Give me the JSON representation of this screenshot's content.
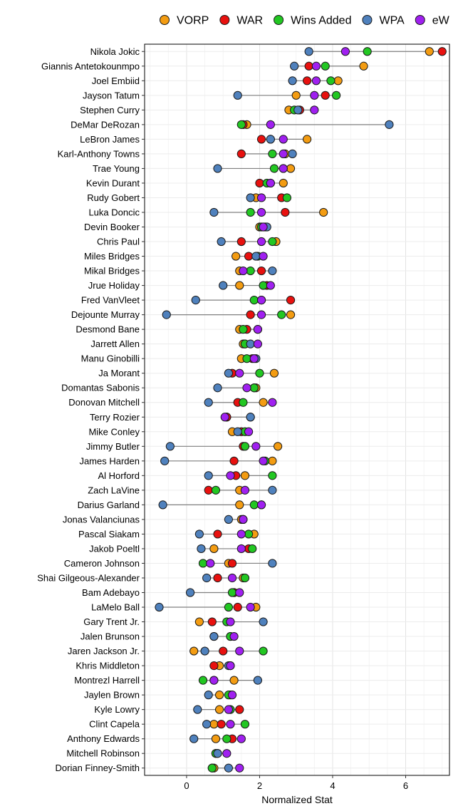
{
  "chart_data": {
    "type": "scatter",
    "xlabel": "Normalized Stat",
    "ylabel": "",
    "xlim": [
      -1.15,
      7.2
    ],
    "xticks": [
      0,
      2,
      4,
      6
    ],
    "grid": true,
    "legend_position": "top",
    "colors": {
      "VORP": "#F39C12",
      "WAR": "#E8110F",
      "Wins Added": "#22C722",
      "WPA": "#4F81BD",
      "eW": "#A020F0"
    },
    "series_order": [
      "VORP",
      "WAR",
      "Wins Added",
      "WPA",
      "eW"
    ],
    "players": [
      {
        "name": "Nikola Jokic",
        "VORP": 6.65,
        "WAR": 7.0,
        "Wins Added": 4.95,
        "WPA": 3.35,
        "eW": 4.35
      },
      {
        "name": "Giannis Antetokounmpo",
        "VORP": 4.85,
        "WAR": 3.35,
        "Wins Added": 3.8,
        "WPA": 2.95,
        "eW": 3.55
      },
      {
        "name": "Joel Embiid",
        "VORP": 4.15,
        "WAR": 3.3,
        "Wins Added": 3.95,
        "WPA": 2.9,
        "eW": 3.55
      },
      {
        "name": "Jayson Tatum",
        "VORP": 3.0,
        "WAR": 3.8,
        "Wins Added": 4.1,
        "WPA": 1.4,
        "eW": 3.5
      },
      {
        "name": "Stephen Curry",
        "VORP": 2.8,
        "WAR": 3.1,
        "Wins Added": 2.95,
        "WPA": 3.05,
        "eW": 3.5
      },
      {
        "name": "DeMar DeRozan",
        "VORP": 1.65,
        "WAR": 1.55,
        "Wins Added": 1.5,
        "WPA": 5.55,
        "eW": 2.3
      },
      {
        "name": "LeBron James",
        "VORP": 3.3,
        "WAR": 2.05,
        "Wins Added": 2.3,
        "WPA": 2.3,
        "eW": 2.65
      },
      {
        "name": "Karl-Anthony Towns",
        "VORP": 2.7,
        "WAR": 1.5,
        "Wins Added": 2.35,
        "WPA": 2.9,
        "eW": 2.65
      },
      {
        "name": "Trae Young",
        "VORP": 2.85,
        "WAR": 2.65,
        "Wins Added": 2.4,
        "WPA": 0.85,
        "eW": 2.65
      },
      {
        "name": "Kevin Durant",
        "VORP": 2.65,
        "WAR": 2.0,
        "Wins Added": 2.2,
        "WPA": 2.3,
        "eW": 2.3
      },
      {
        "name": "Rudy Gobert",
        "VORP": 1.9,
        "WAR": 2.6,
        "Wins Added": 2.75,
        "WPA": 1.75,
        "eW": 2.05
      },
      {
        "name": "Luka Doncic",
        "VORP": 3.75,
        "WAR": 2.7,
        "Wins Added": 1.75,
        "WPA": 0.75,
        "eW": 2.05
      },
      {
        "name": "Devin Booker",
        "VORP": 2.0,
        "WAR": 2.15,
        "Wins Added": 2.05,
        "WPA": 2.2,
        "eW": 2.1
      },
      {
        "name": "Chris Paul",
        "VORP": 2.45,
        "WAR": 1.5,
        "Wins Added": 2.35,
        "WPA": 0.95,
        "eW": 2.05
      },
      {
        "name": "Miles Bridges",
        "VORP": 1.35,
        "WAR": 1.7,
        "Wins Added": 1.95,
        "WPA": 1.9,
        "eW": 2.1
      },
      {
        "name": "Mikal Bridges",
        "VORP": 1.45,
        "WAR": 2.05,
        "Wins Added": 1.75,
        "WPA": 2.35,
        "eW": 1.55
      },
      {
        "name": "Jrue Holiday",
        "VORP": 1.45,
        "WAR": 2.2,
        "Wins Added": 2.1,
        "WPA": 1.0,
        "eW": 2.3
      },
      {
        "name": "Fred VanVleet",
        "VORP": 2.05,
        "WAR": 2.85,
        "Wins Added": 1.85,
        "WPA": 0.25,
        "eW": 2.05
      },
      {
        "name": "Dejounte Murray",
        "VORP": 2.85,
        "WAR": 1.75,
        "Wins Added": 2.6,
        "WPA": -0.55,
        "eW": 2.05
      },
      {
        "name": "Desmond Bane",
        "VORP": 1.45,
        "WAR": 1.65,
        "Wins Added": 1.55,
        "WPA": 1.95,
        "eW": 1.95
      },
      {
        "name": "Jarrett Allen",
        "VORP": 1.55,
        "WAR": 1.6,
        "Wins Added": 1.6,
        "WPA": 1.75,
        "eW": 1.95
      },
      {
        "name": "Manu Ginobilli",
        "VORP": 1.5,
        "WAR": 1.8,
        "Wins Added": 1.65,
        "WPA": 1.9,
        "eW": 1.85
      },
      {
        "name": "Ja Morant",
        "VORP": 2.4,
        "WAR": 1.25,
        "Wins Added": 2.0,
        "WPA": 1.15,
        "eW": 1.45
      },
      {
        "name": "Domantas Sabonis",
        "VORP": 1.9,
        "WAR": 1.85,
        "Wins Added": 1.85,
        "WPA": 0.85,
        "eW": 1.65
      },
      {
        "name": "Donovan Mitchell",
        "VORP": 2.1,
        "WAR": 1.4,
        "Wins Added": 1.55,
        "WPA": 0.6,
        "eW": 2.35
      },
      {
        "name": "Terry Rozier",
        "VORP": 1.1,
        "WAR": 1.1,
        "Wins Added": 1.75,
        "WPA": 1.75,
        "eW": 1.05
      },
      {
        "name": "Mike Conley",
        "VORP": 1.25,
        "WAR": 1.5,
        "Wins Added": 1.6,
        "WPA": 1.4,
        "eW": 1.7
      },
      {
        "name": "Jimmy Butler",
        "VORP": 2.5,
        "WAR": 1.55,
        "Wins Added": 1.6,
        "WPA": -0.45,
        "eW": 1.9
      },
      {
        "name": "James Harden",
        "VORP": 2.35,
        "WAR": 1.3,
        "Wins Added": 2.15,
        "WPA": -0.6,
        "eW": 2.1
      },
      {
        "name": "Al Horford",
        "VORP": 1.6,
        "WAR": 1.35,
        "Wins Added": 2.35,
        "WPA": 0.6,
        "eW": 1.2
      },
      {
        "name": "Zach LaVine",
        "VORP": 1.45,
        "WAR": 0.6,
        "Wins Added": 0.8,
        "WPA": 2.35,
        "eW": 1.6
      },
      {
        "name": "Darius Garland",
        "VORP": 1.45,
        "WAR": 2.05,
        "Wins Added": 1.85,
        "WPA": -0.65,
        "eW": 2.05
      },
      {
        "name": "Jonas Valanciunas",
        "VORP": 1.5,
        "WAR": 1.55,
        "Wins Added": 1.55,
        "WPA": 1.15,
        "eW": 1.55
      },
      {
        "name": "Pascal Siakam",
        "VORP": 1.85,
        "WAR": 0.85,
        "Wins Added": 1.7,
        "WPA": 0.35,
        "eW": 1.5
      },
      {
        "name": "Jakob Poeltl",
        "VORP": 0.75,
        "WAR": 1.7,
        "Wins Added": 1.8,
        "WPA": 0.4,
        "eW": 1.5
      },
      {
        "name": "Cameron Johnson",
        "VORP": 1.15,
        "WAR": 1.25,
        "Wins Added": 0.45,
        "WPA": 2.35,
        "eW": 0.65
      },
      {
        "name": "Shai Gilgeous-Alexander",
        "VORP": 1.55,
        "WAR": 0.85,
        "Wins Added": 1.6,
        "WPA": 0.55,
        "eW": 1.25
      },
      {
        "name": "Bam Adebayo",
        "VORP": 1.3,
        "WAR": 1.3,
        "Wins Added": 1.25,
        "WPA": 0.1,
        "eW": 1.45
      },
      {
        "name": "LaMelo Ball",
        "VORP": 1.9,
        "WAR": 1.4,
        "Wins Added": 1.15,
        "WPA": -0.75,
        "eW": 1.75
      },
      {
        "name": "Gary Trent Jr.",
        "VORP": 0.35,
        "WAR": 0.7,
        "Wins Added": 1.1,
        "WPA": 2.1,
        "eW": 1.2
      },
      {
        "name": "Jalen Brunson",
        "VORP": 0.75,
        "WAR": 1.2,
        "Wins Added": 1.2,
        "WPA": 0.75,
        "eW": 1.3
      },
      {
        "name": "Jaren Jackson Jr.",
        "VORP": 0.2,
        "WAR": 1.0,
        "Wins Added": 2.1,
        "WPA": 0.5,
        "eW": 1.45
      },
      {
        "name": "Khris Middleton",
        "VORP": 0.9,
        "WAR": 0.75,
        "Wins Added": 1.2,
        "WPA": 1.15,
        "eW": 1.2
      },
      {
        "name": "Montrezl Harrell",
        "VORP": 1.3,
        "WAR": 0.75,
        "Wins Added": 0.45,
        "WPA": 1.95,
        "eW": 0.75
      },
      {
        "name": "Jaylen Brown",
        "VORP": 0.9,
        "WAR": 1.2,
        "Wins Added": 1.15,
        "WPA": 0.6,
        "eW": 1.25
      },
      {
        "name": "Kyle Lowry",
        "VORP": 0.9,
        "WAR": 1.45,
        "Wins Added": 1.2,
        "WPA": 0.3,
        "eW": 1.15
      },
      {
        "name": "Clint Capela",
        "VORP": 0.75,
        "WAR": 0.95,
        "Wins Added": 1.6,
        "WPA": 0.55,
        "eW": 1.2
      },
      {
        "name": "Anthony Edwards",
        "VORP": 0.8,
        "WAR": 1.25,
        "Wins Added": 1.1,
        "WPA": 0.2,
        "eW": 1.5
      },
      {
        "name": "Mitchell Robinson",
        "VORP": 0.8,
        "WAR": 0.85,
        "Wins Added": 0.8,
        "WPA": 0.85,
        "eW": 1.1
      },
      {
        "name": "Dorian Finney-Smith",
        "VORP": 0.75,
        "WAR": 0.7,
        "Wins Added": 0.7,
        "WPA": 1.15,
        "eW": 1.45
      }
    ]
  }
}
